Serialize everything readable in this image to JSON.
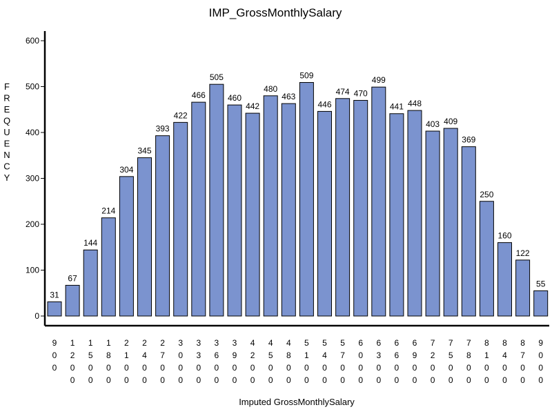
{
  "chart_data": {
    "type": "bar",
    "title": "IMP_GrossMonthlySalary",
    "xlabel": "Imputed GrossMonthlySalary",
    "ylabel": "FREQUENCY",
    "ylim": [
      0,
      600
    ],
    "yticks": [
      0,
      100,
      200,
      300,
      400,
      500,
      600
    ],
    "grid": false,
    "categories": [
      "900",
      "1200",
      "1500",
      "1800",
      "2100",
      "2400",
      "2700",
      "3000",
      "3300",
      "3600",
      "3900",
      "4200",
      "4500",
      "4800",
      "5100",
      "5400",
      "5700",
      "6000",
      "6300",
      "6600",
      "6900",
      "7200",
      "7500",
      "7800",
      "8100",
      "8400",
      "8700",
      "9000"
    ],
    "values": [
      31,
      67,
      144,
      214,
      304,
      345,
      393,
      422,
      466,
      505,
      460,
      442,
      480,
      463,
      509,
      446,
      474,
      470,
      499,
      441,
      448,
      403,
      409,
      369,
      250,
      160,
      122,
      55
    ],
    "bar_color": "#7b93cf",
    "bar_edge_color": "#000000"
  }
}
